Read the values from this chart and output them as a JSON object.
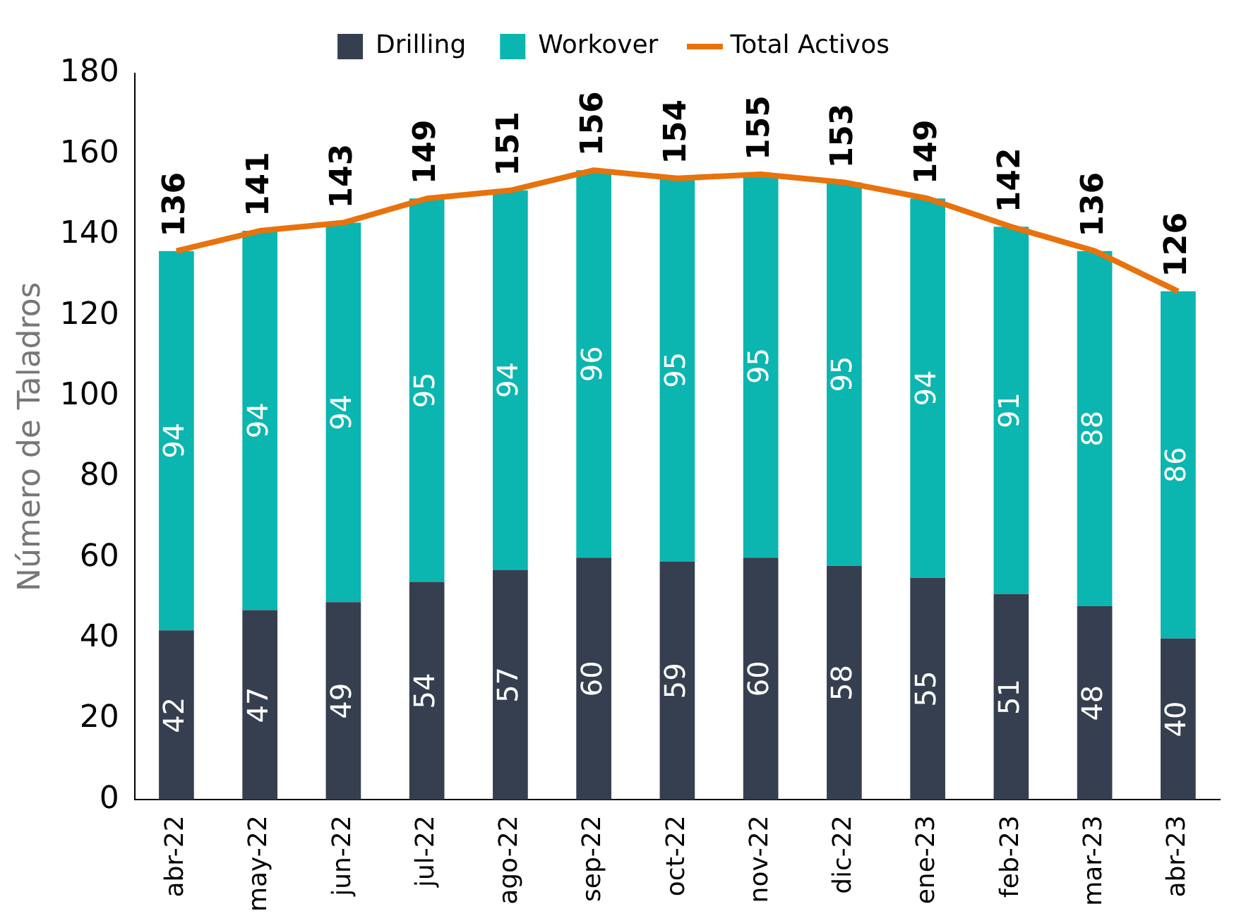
{
  "chart_data": {
    "type": "bar",
    "ylabel": "Número de Taladros",
    "categories": [
      "abr-22",
      "may-22",
      "jun-22",
      "jul-22",
      "ago-22",
      "sep-22",
      "oct-22",
      "nov-22",
      "dic-22",
      "ene-23",
      "feb-23",
      "mar-23",
      "abr-23"
    ],
    "series": [
      {
        "name": "Drilling",
        "color": "#353f4f",
        "values": [
          42,
          47,
          49,
          54,
          57,
          60,
          59,
          60,
          58,
          55,
          51,
          48,
          40
        ]
      },
      {
        "name": "Workover",
        "color": "#0bb5b0",
        "values": [
          94,
          94,
          94,
          95,
          94,
          96,
          95,
          95,
          95,
          94,
          91,
          88,
          86
        ]
      },
      {
        "name": "Total Activos",
        "type": "line",
        "color": "#e8720c",
        "values": [
          136,
          141,
          143,
          149,
          151,
          156,
          154,
          155,
          153,
          149,
          142,
          136,
          126
        ]
      }
    ],
    "stacked": true,
    "ylim": [
      0,
      180
    ],
    "yticks": [
      0,
      20,
      40,
      60,
      80,
      100,
      120,
      140,
      160,
      180
    ],
    "grid": false,
    "legend": "top",
    "data_labels": true
  }
}
